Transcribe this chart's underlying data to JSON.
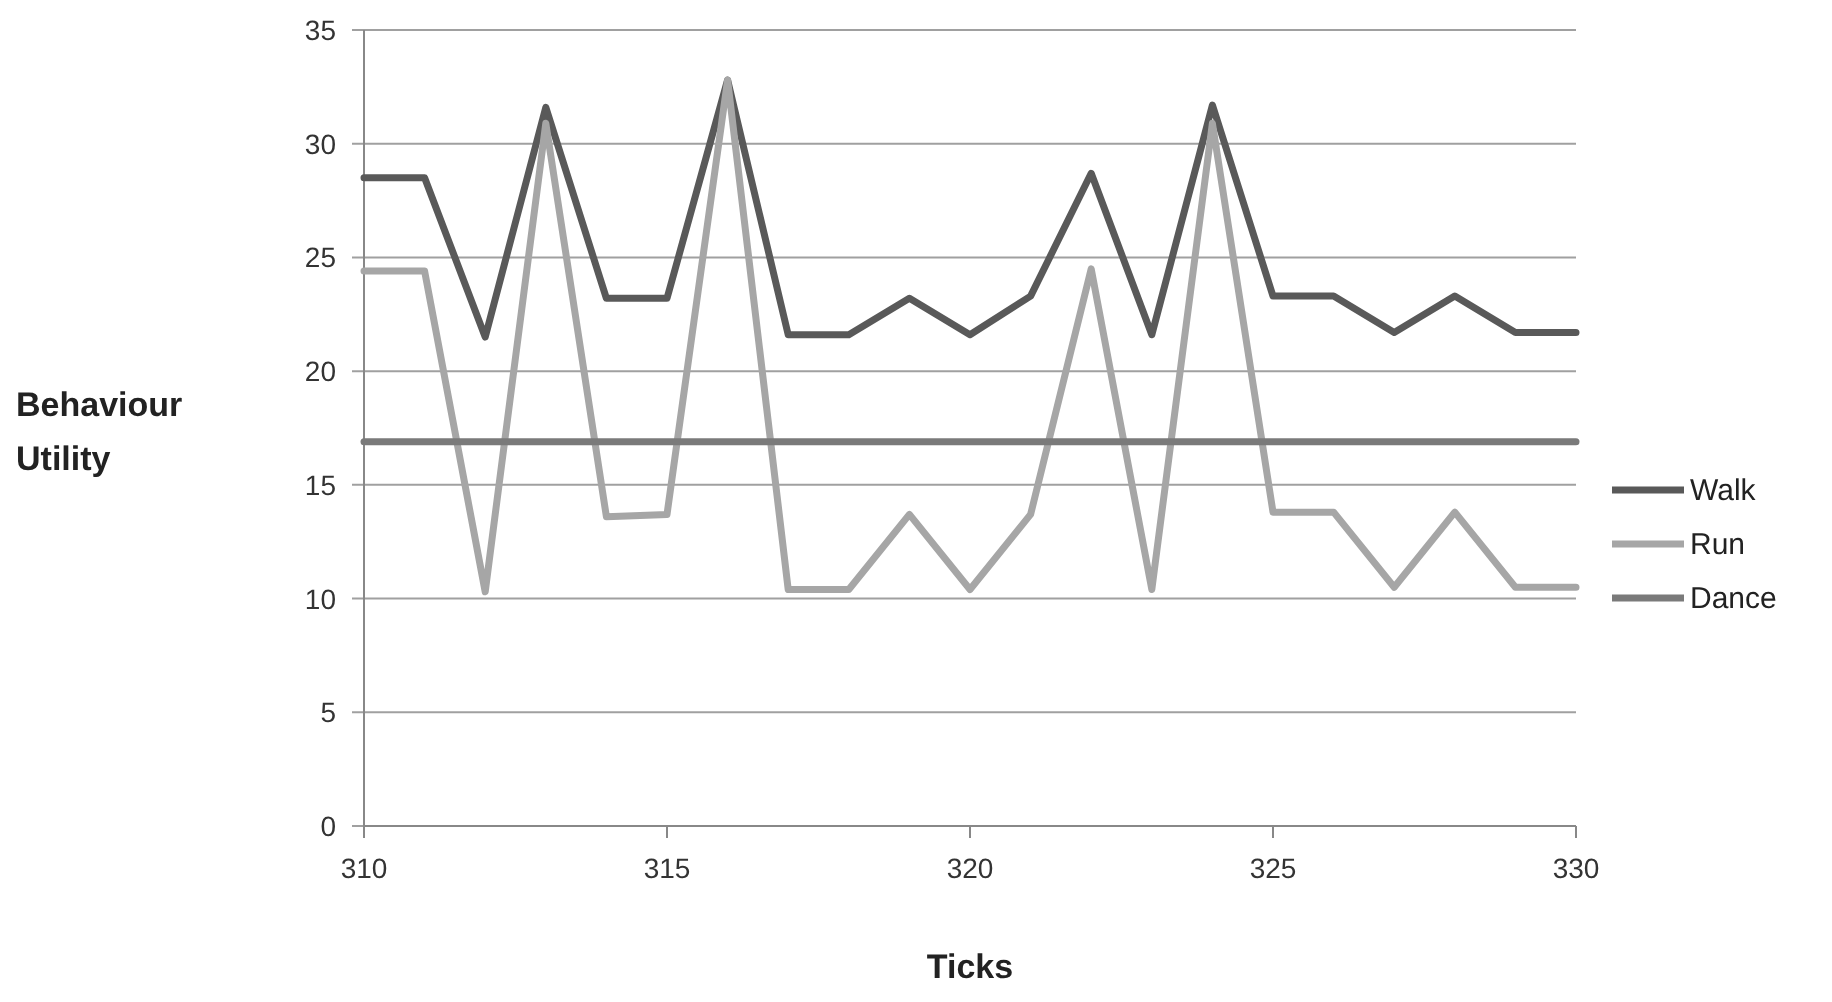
{
  "chart_data": {
    "type": "line",
    "xlabel": "Ticks",
    "ylabel": "Behaviour Utility",
    "x": [
      310,
      311,
      312,
      313,
      314,
      315,
      316,
      317,
      318,
      319,
      320,
      321,
      322,
      323,
      324,
      325,
      326,
      327,
      328,
      329,
      330
    ],
    "series": [
      {
        "name": "Walk",
        "color": "#595959",
        "values": [
          28.5,
          28.5,
          21.5,
          31.6,
          23.2,
          23.2,
          32.8,
          21.6,
          21.6,
          23.2,
          21.6,
          23.3,
          28.7,
          21.6,
          31.7,
          23.3,
          23.3,
          21.7,
          23.3,
          21.7,
          21.7
        ]
      },
      {
        "name": "Run",
        "color": "#a6a6a6",
        "values": [
          24.4,
          24.4,
          10.3,
          30.9,
          13.6,
          13.7,
          32.8,
          10.4,
          10.4,
          13.7,
          10.4,
          13.7,
          24.5,
          10.4,
          30.9,
          13.8,
          13.8,
          10.5,
          13.8,
          10.5,
          10.5
        ]
      },
      {
        "name": "Dance",
        "color": "#7a7a7a",
        "values": [
          16.9,
          16.9,
          16.9,
          16.9,
          16.9,
          16.9,
          16.9,
          16.9,
          16.9,
          16.9,
          16.9,
          16.9,
          16.9,
          16.9,
          16.9,
          16.9,
          16.9,
          16.9,
          16.9,
          16.9,
          16.9
        ]
      }
    ],
    "xlim": [
      310,
      330
    ],
    "xticks": [
      310,
      315,
      320,
      325,
      330
    ],
    "ylim": [
      0,
      35
    ],
    "yticks": [
      0,
      5,
      10,
      15,
      20,
      25,
      30,
      35
    ],
    "grid": "y",
    "legend": "right",
    "marker": "none",
    "line_style": "solid"
  }
}
